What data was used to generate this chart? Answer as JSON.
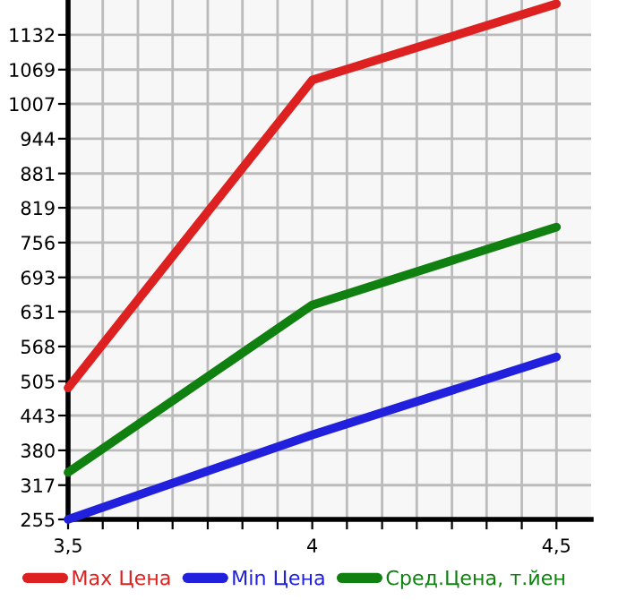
{
  "chart_data": {
    "type": "line",
    "x": [
      3.5,
      4,
      4.5
    ],
    "series": [
      {
        "name": "Max Цена",
        "color": "#dd2020",
        "values": [
          493,
          1050,
          1188
        ]
      },
      {
        "name": "Min Цена",
        "color": "#2020dd",
        "values": [
          255,
          408,
          549
        ]
      },
      {
        "name": "Сред.Цена, т.йен",
        "color": "#108010",
        "values": [
          340,
          643,
          784
        ]
      }
    ],
    "xlim": [
      3.5,
      4.571
    ],
    "xticks": [
      {
        "value": 3.5,
        "label": "3,5"
      },
      {
        "value": 3.571,
        "label": null
      },
      {
        "value": 3.643,
        "label": null
      },
      {
        "value": 3.714,
        "label": null
      },
      {
        "value": 3.786,
        "label": null
      },
      {
        "value": 3.857,
        "label": null
      },
      {
        "value": 3.929,
        "label": null
      },
      4,
      {
        "value": 4.071,
        "label": null
      },
      {
        "value": 4.143,
        "label": null
      },
      {
        "value": 4.214,
        "label": null
      },
      {
        "value": 4.286,
        "label": null
      },
      {
        "value": 4.357,
        "label": null
      },
      {
        "value": 4.429,
        "label": null
      },
      {
        "value": 4.5,
        "label": "4,5"
      }
    ],
    "ylim": [
      255,
      1195
    ],
    "yticks": [
      255,
      317,
      380,
      443,
      505,
      568,
      631,
      693,
      756,
      819,
      881,
      944,
      1007,
      1069,
      1132
    ],
    "grid": true,
    "legend": "bottom",
    "marker": "none",
    "line_style": "solid"
  }
}
